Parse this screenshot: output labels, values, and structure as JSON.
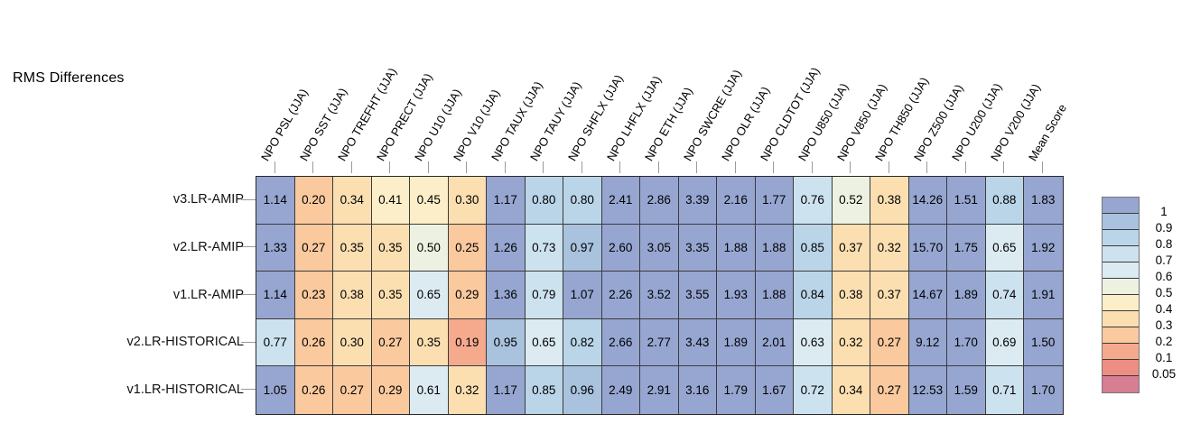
{
  "title": "RMS Differences",
  "chart_data": {
    "type": "heatmap",
    "title": "RMS Differences",
    "season": "JJA",
    "columns": [
      "NPO PSL (JJA)",
      "NPO SST (JJA)",
      "NPO TREFHT (JJA)",
      "NPO PRECT (JJA)",
      "NPO U10 (JJA)",
      "NPO V10 (JJA)",
      "NPO TAUX (JJA)",
      "NPO TAUY (JJA)",
      "NPO SHFLX (JJA)",
      "NPO LHFLX (JJA)",
      "NPO ETH (JJA)",
      "NPO SWCRE (JJA)",
      "NPO OLR (JJA)",
      "NPO CLDTOT (JJA)",
      "NPO U850 (JJA)",
      "NPO V850 (JJA)",
      "NPO TH850 (JJA)",
      "NPO Z500 (JJA)",
      "NPO U200 (JJA)",
      "NPO V200 (JJA)",
      "Mean Score"
    ],
    "rows": [
      "v3.LR-AMIP",
      "v2.LR-AMIP",
      "v1.LR-AMIP",
      "v2.LR-HISTORICAL",
      "v1.LR-HISTORICAL"
    ],
    "values": [
      [
        1.14,
        0.2,
        0.34,
        0.41,
        0.45,
        0.3,
        1.17,
        0.8,
        0.8,
        2.41,
        2.86,
        3.39,
        2.16,
        1.77,
        0.76,
        0.52,
        0.38,
        14.26,
        1.51,
        0.88,
        1.83
      ],
      [
        1.33,
        0.27,
        0.35,
        0.35,
        0.5,
        0.25,
        1.26,
        0.73,
        0.97,
        2.6,
        3.05,
        3.35,
        1.88,
        1.88,
        0.85,
        0.37,
        0.32,
        15.7,
        1.75,
        0.65,
        1.92
      ],
      [
        1.14,
        0.23,
        0.38,
        0.35,
        0.65,
        0.29,
        1.36,
        0.79,
        1.07,
        2.26,
        3.52,
        3.55,
        1.93,
        1.88,
        0.84,
        0.38,
        0.37,
        14.67,
        1.89,
        0.74,
        1.91
      ],
      [
        0.77,
        0.26,
        0.3,
        0.27,
        0.35,
        0.19,
        0.95,
        0.65,
        0.82,
        2.66,
        2.77,
        3.43,
        1.89,
        2.01,
        0.63,
        0.32,
        0.27,
        9.12,
        1.7,
        0.69,
        1.5
      ],
      [
        1.05,
        0.26,
        0.27,
        0.29,
        0.61,
        0.32,
        1.17,
        0.85,
        0.96,
        2.49,
        2.91,
        3.16,
        1.79,
        1.67,
        0.72,
        0.34,
        0.27,
        12.53,
        1.59,
        0.71,
        1.7
      ]
    ],
    "value_decimals": 2,
    "colorbar": {
      "position": "right",
      "tick_labels": [
        "1",
        "0.9",
        "0.8",
        "0.7",
        "0.6",
        "0.5",
        "0.4",
        "0.3",
        "0.2",
        "0.1",
        "0.05"
      ],
      "thresholds": [
        1,
        0.9,
        0.8,
        0.7,
        0.6,
        0.5,
        0.4,
        0.3,
        0.2,
        0.1,
        0.05
      ],
      "band_colors": [
        "#96a6d1",
        "#a9c2de",
        "#bad5e8",
        "#cde2ef",
        "#dcebf2",
        "#edf1e1",
        "#fbeec9",
        "#fbdfb1",
        "#fac99e",
        "#f5aa8d",
        "#ee8d82",
        "#d67e92"
      ]
    },
    "style_colors": {
      "cell_border": "#3b3b3b",
      "outer_border": "#2a2a2a",
      "tick": "#9a9a9a",
      "text": "#000000",
      "background": "#ffffff"
    },
    "grid_on": true,
    "legend_position": "right"
  }
}
